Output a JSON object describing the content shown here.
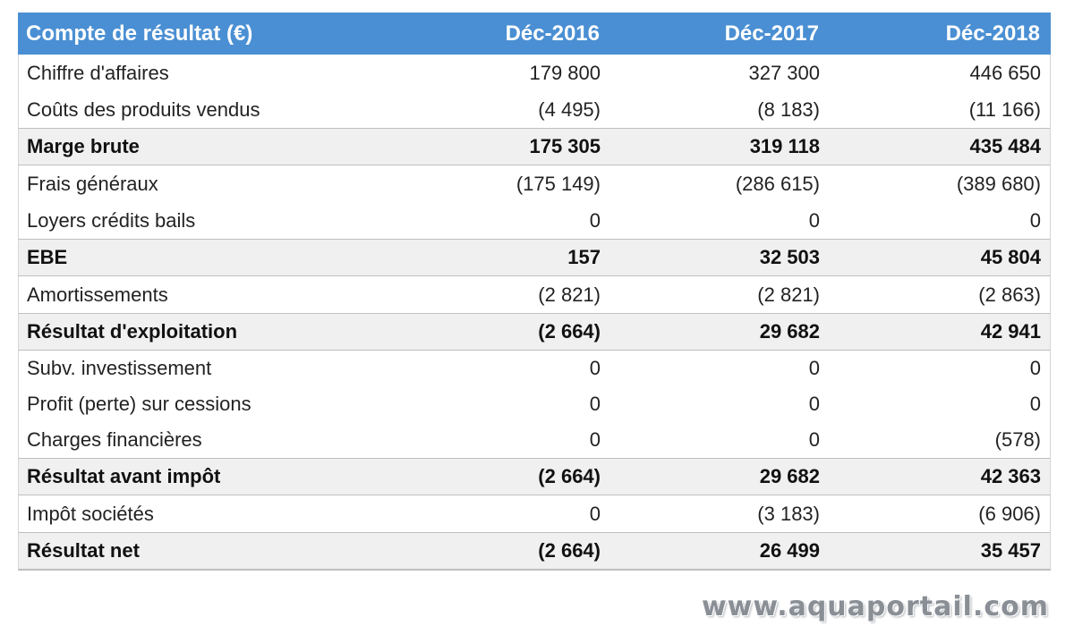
{
  "table": {
    "header": {
      "label": "Compte de résultat (€)",
      "col1": "Déc-2016",
      "col2": "Déc-2017",
      "col3": "Déc-2018"
    },
    "rows": [
      {
        "label": "Chiffre d'affaires",
        "v1": "179 800",
        "v2": "327 300",
        "v3": "446 650"
      },
      {
        "label": "Coûts des produits vendus",
        "v1": "(4 495)",
        "v2": "(8 183)",
        "v3": "(11 166)"
      },
      {
        "label": "Marge brute",
        "v1": "175 305",
        "v2": "319 118",
        "v3": "435 484"
      },
      {
        "label": "Frais généraux",
        "v1": "(175 149)",
        "v2": "(286 615)",
        "v3": "(389 680)"
      },
      {
        "label": "Loyers crédits bails",
        "v1": "0",
        "v2": "0",
        "v3": "0"
      },
      {
        "label": "EBE",
        "v1": "157",
        "v2": "32 503",
        "v3": "45 804"
      },
      {
        "label": "Amortissements",
        "v1": "(2 821)",
        "v2": "(2 821)",
        "v3": "(2 863)"
      },
      {
        "label": "Résultat d'exploitation",
        "v1": "(2 664)",
        "v2": "29 682",
        "v3": "42 941"
      },
      {
        "label": "Subv. investissement",
        "v1": "0",
        "v2": "0",
        "v3": "0"
      },
      {
        "label": "Profit (perte) sur cessions",
        "v1": "0",
        "v2": "0",
        "v3": "0"
      },
      {
        "label": "Charges financières",
        "v1": "0",
        "v2": "0",
        "v3": "(578)"
      },
      {
        "label": "Résultat avant impôt",
        "v1": "(2 664)",
        "v2": "29 682",
        "v3": "42 363"
      },
      {
        "label": "Impôt sociétés",
        "v1": "0",
        "v2": "(3 183)",
        "v3": "(6 906)"
      },
      {
        "label": "Résultat net",
        "v1": "(2 664)",
        "v2": "26 499",
        "v3": "35 457"
      }
    ]
  },
  "watermark": "www.aquaportail.com"
}
